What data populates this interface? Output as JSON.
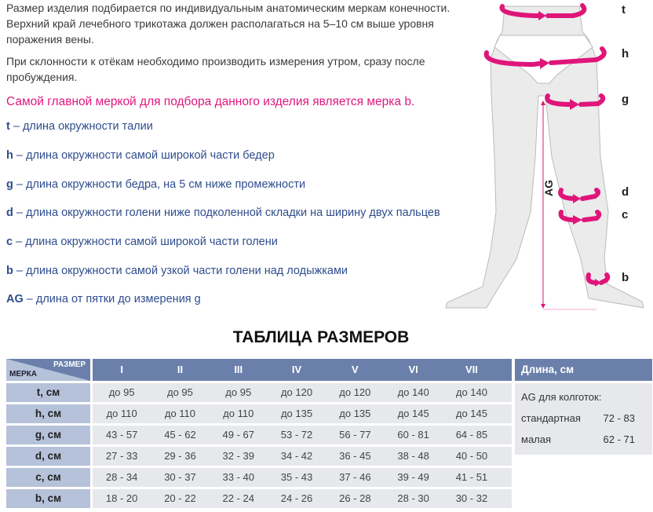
{
  "intro": {
    "p1": "Размер изделия подбирается по индивидуальным анатомическим меркам конечности. Верхний край лечебного трикотажа должен располагаться на 5–10 см выше уровня поражения вены.",
    "p2": "При склонности к отёкам необходимо производить измерения утром, сразу после пробуждения.",
    "highlight": "Самой главной меркой для подбора данного изделия является мерка b."
  },
  "legend": [
    {
      "key": "t",
      "text": " – длина окружности талии"
    },
    {
      "key": "h",
      "text": " – длина окружности самой широкой части бедер"
    },
    {
      "key": "g",
      "text": " – длина окружности бедра, на 5 см ниже промежности"
    },
    {
      "key": "d",
      "text": " – длина окружности голени ниже подколенной складки на ширину двух пальцев"
    },
    {
      "key": "c",
      "text": " – длина окружности самой широкой части голени"
    },
    {
      "key": "b",
      "text": " – длина окружности самой узкой части голени над лодыжками"
    },
    {
      "key": "AG",
      "text": " – длина от пятки до измерения g"
    }
  ],
  "figure": {
    "labels": [
      "t",
      "h",
      "g",
      "d",
      "c",
      "b"
    ],
    "ag_label": "AG",
    "accent": "#e0157a"
  },
  "table": {
    "title": "ТАБЛИЦА РАЗМЕРОВ",
    "corner_measure": "МЕРКА",
    "corner_size": "РАЗМЕР",
    "sizes": [
      "I",
      "II",
      "III",
      "IV",
      "V",
      "VI",
      "VII"
    ],
    "rows": [
      {
        "label": "t, см",
        "values": [
          "до 95",
          "до 95",
          "до 95",
          "до 120",
          "до 120",
          "до 140",
          "до 140"
        ]
      },
      {
        "label": "h, см",
        "values": [
          "до 110",
          "до 110",
          "до 110",
          "до 135",
          "до 135",
          "до 145",
          "до 145"
        ]
      },
      {
        "label": "g, см",
        "values": [
          "43 - 57",
          "45 - 62",
          "49 - 67",
          "53 - 72",
          "56 - 77",
          "60 - 81",
          "64 - 85"
        ]
      },
      {
        "label": "d, см",
        "values": [
          "27 - 33",
          "29 - 36",
          "32 - 39",
          "34 - 42",
          "36 - 45",
          "38 - 48",
          "40 - 50"
        ]
      },
      {
        "label": "c, см",
        "values": [
          "28 - 34",
          "30 - 37",
          "33 - 40",
          "35 - 43",
          "37 - 46",
          "39 - 49",
          "41 - 51"
        ]
      },
      {
        "label": "b, см",
        "values": [
          "18 - 20",
          "20 - 22",
          "22 - 24",
          "24 - 26",
          "26 - 28",
          "28 - 30",
          "30 - 32"
        ]
      }
    ],
    "header_color": "#6a80ab",
    "label_color": "#b5c2d9",
    "cell_color": "#e6e8eb"
  },
  "length_table": {
    "title": "Длина, см",
    "subtitle": "AG для колготок:",
    "rows": [
      {
        "label": "стандартная",
        "value": "72 - 83"
      },
      {
        "label": "малая",
        "value": "62 - 71"
      }
    ]
  }
}
